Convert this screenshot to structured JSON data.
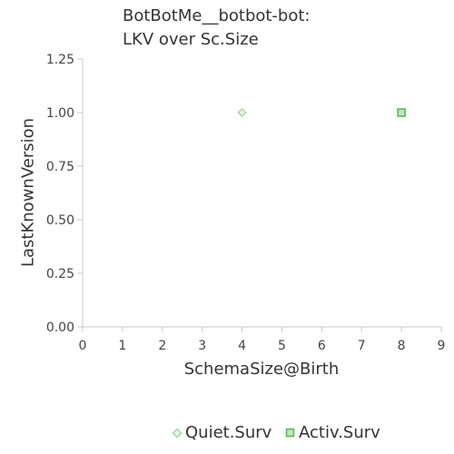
{
  "chart_data": {
    "type": "scatter",
    "title": [
      "BotBotMe__botbot-bot:",
      "LKV over Sc.Size"
    ],
    "xlabel": "SchemaSize@Birth",
    "ylabel": "LastKnownVersion",
    "xlim": [
      0,
      9
    ],
    "ylim": [
      0,
      1.25
    ],
    "x_ticks": [
      0,
      1,
      2,
      3,
      4,
      5,
      6,
      7,
      8,
      9
    ],
    "y_ticks": [
      "0.00",
      "0.25",
      "0.50",
      "0.75",
      "1.00",
      "1.25"
    ],
    "grid": false,
    "legend_position": "bottom-center",
    "series": [
      {
        "name": "Quiet.Surv",
        "marker": "diamond",
        "color": "#9fd89a",
        "points": [
          {
            "x": 4,
            "y": 1.0
          }
        ]
      },
      {
        "name": "Activ.Surv",
        "marker": "square",
        "color": "#5cb85c",
        "points": [
          {
            "x": 8,
            "y": 1.0
          }
        ]
      }
    ]
  }
}
